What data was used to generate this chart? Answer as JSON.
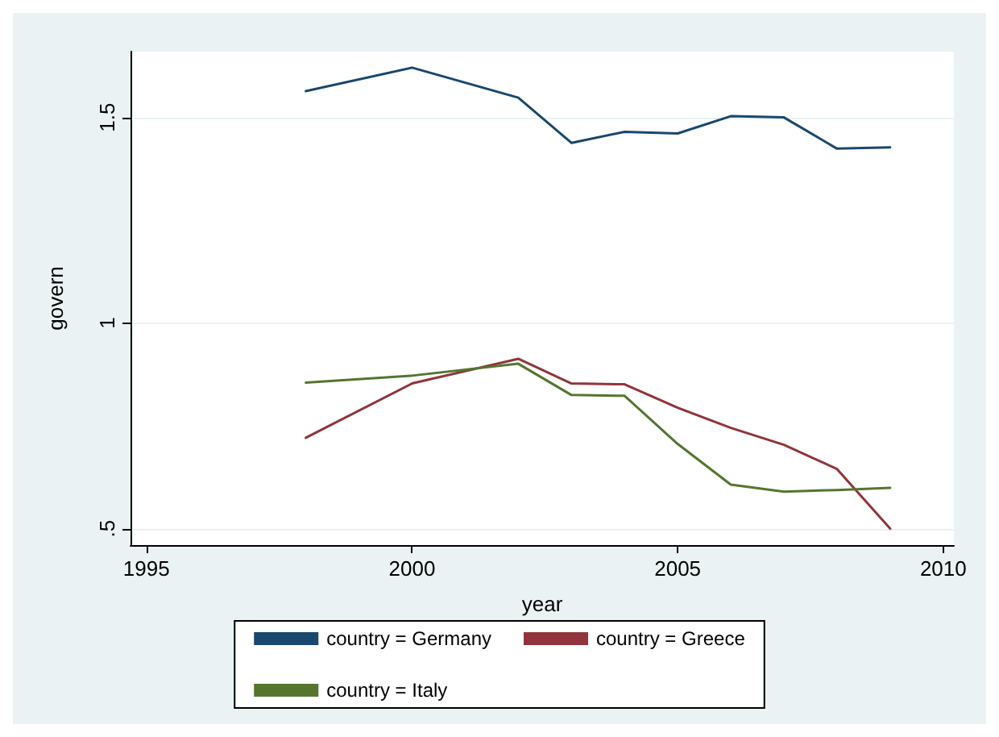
{
  "chart_data": {
    "type": "line",
    "xlabel": "year",
    "ylabel": "govern",
    "x": [
      1998,
      2000,
      2002,
      2003,
      2004,
      2005,
      2006,
      2007,
      2008,
      2009
    ],
    "series": [
      {
        "name": "country = Germany",
        "color": "#1a476f",
        "values": [
          1.564,
          1.621,
          1.548,
          1.438,
          1.465,
          1.461,
          1.503,
          1.5,
          1.424,
          1.427
        ]
      },
      {
        "name": "country = Greece",
        "color": "#90353b",
        "values": [
          0.721,
          0.853,
          0.913,
          0.853,
          0.851,
          0.794,
          0.745,
          0.704,
          0.645,
          0.5
        ]
      },
      {
        "name": "country = Italy",
        "color": "#55752f",
        "values": [
          0.855,
          0.872,
          0.901,
          0.825,
          0.823,
          0.706,
          0.607,
          0.59,
          0.594,
          0.599
        ]
      }
    ],
    "xlim": [
      1994.7,
      2010.2
    ],
    "xticks": [
      1995,
      2000,
      2005,
      2010
    ],
    "ylim": [
      0.46,
      1.66
    ],
    "yticks": [
      {
        "value": 0.5,
        "label": ".5"
      },
      1,
      1.5
    ],
    "grid": "y",
    "legend": "bottom",
    "marker": "none",
    "line_style": "solid"
  }
}
